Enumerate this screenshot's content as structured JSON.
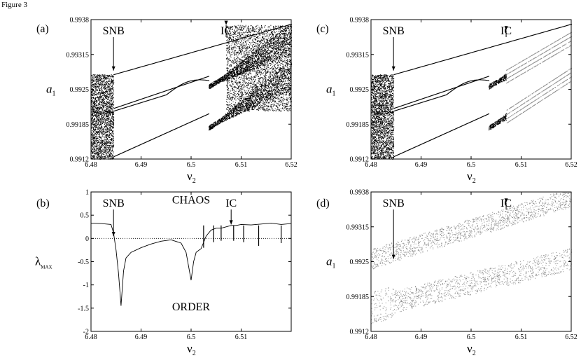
{
  "figure": {
    "title": "Figure 3"
  },
  "colors": {
    "dark": "#000000",
    "light": "#8c8c8c"
  },
  "chart_data": [
    {
      "panel": "(a)",
      "type": "scatter",
      "style": "bifurcation",
      "xlabel": "ν2",
      "ylabel": "a1",
      "xlim": [
        6.48,
        6.52
      ],
      "ylim": [
        0.9912,
        0.9938
      ],
      "xticks": [
        6.48,
        6.49,
        6.5,
        6.51,
        6.52
      ],
      "xtick_labels": [
        "6.48",
        "6.49",
        "6.5",
        "6.51",
        "6.52"
      ],
      "yticks": [
        0.9912,
        0.99185,
        0.9925,
        0.99315,
        0.9938
      ],
      "ytick_labels": [
        "0.9912",
        "0.99185",
        "0.9925",
        "0.99315",
        "0.9938"
      ],
      "annotations": [
        {
          "text": "SNB",
          "x": 6.4845,
          "arrow_to_y": 0.99285
        },
        {
          "text": "IC",
          "x": 6.507,
          "arrow_to_y": 0.9937
        }
      ],
      "color": "dark",
      "chaos_until": 6.4845,
      "band_from": 6.5035,
      "intermittency_from": 6.507
    },
    {
      "panel": "(b)",
      "type": "line",
      "xlabel": "ν2",
      "ylabel": "λ_MAX",
      "xlim": [
        6.48,
        6.52
      ],
      "ylim": [
        -2,
        1
      ],
      "xticks": [
        6.48,
        6.49,
        6.5,
        6.51
      ],
      "xtick_labels": [
        "6.48",
        "6.49",
        "6.5",
        "6.51"
      ],
      "yticks": [
        -2,
        -1.5,
        -1,
        -0.5,
        0,
        0.5,
        1
      ],
      "ytick_labels": [
        "-2",
        "-1.5",
        "-1",
        "-0.5",
        "0",
        "0.5",
        "1"
      ],
      "annotations": [
        {
          "text": "SNB",
          "x": 6.4845,
          "arrow_to_y": 0.05
        },
        {
          "text": "IC",
          "x": 6.508,
          "arrow_to_y": 0.3
        },
        {
          "text": "CHAOS",
          "x": 6.5,
          "y": 0.75
        },
        {
          "text": "ORDER",
          "x": 6.5,
          "y": -1.55
        }
      ],
      "x": [
        6.48,
        6.482,
        6.484,
        6.4845,
        6.485,
        6.4855,
        6.486,
        6.4865,
        6.487,
        6.488,
        6.49,
        6.492,
        6.494,
        6.496,
        6.498,
        6.499,
        6.4995,
        6.5,
        6.5005,
        6.501,
        6.502,
        6.503,
        6.504,
        6.505,
        6.506,
        6.507,
        6.508,
        6.509,
        6.51,
        6.512,
        6.514,
        6.516,
        6.518,
        6.52
      ],
      "y": [
        0.33,
        0.32,
        0.3,
        0.12,
        -0.25,
        -0.75,
        -1.45,
        -0.7,
        -0.42,
        -0.3,
        -0.2,
        -0.12,
        -0.06,
        -0.03,
        -0.1,
        -0.3,
        -0.6,
        -0.9,
        -0.5,
        -0.3,
        -0.22,
        0.05,
        0.18,
        0.22,
        0.22,
        0.25,
        0.28,
        0.28,
        0.3,
        0.29,
        0.31,
        0.33,
        0.3,
        0.32
      ],
      "spikes": [
        {
          "x": 6.5025,
          "y": -0.2
        },
        {
          "x": 6.5045,
          "y": -0.08
        },
        {
          "x": 6.506,
          "y": -0.05
        },
        {
          "x": 6.5085,
          "y": -0.05
        },
        {
          "x": 6.5105,
          "y": -0.08
        },
        {
          "x": 6.5135,
          "y": -0.16
        },
        {
          "x": 6.518,
          "y": -0.1
        }
      ]
    },
    {
      "panel": "(c)",
      "type": "scatter",
      "style": "bifurcation",
      "xlabel": "ν2",
      "ylabel": "a1",
      "xlim": [
        6.48,
        6.52
      ],
      "ylim": [
        0.9912,
        0.9938
      ],
      "xticks": [
        6.48,
        6.49,
        6.5,
        6.51,
        6.52
      ],
      "xtick_labels": [
        "6.48",
        "6.49",
        "6.5",
        "6.51",
        "6.52"
      ],
      "yticks": [
        0.9912,
        0.99185,
        0.9925,
        0.99315,
        0.9938
      ],
      "ytick_labels": [
        "0.9912",
        "0.99185",
        "0.9925",
        "0.99315",
        "0.9938"
      ],
      "annotations": [
        {
          "text": "SNB",
          "x": 6.4845,
          "arrow_to_y": 0.99285
        },
        {
          "text": "IC",
          "x": 6.507,
          "arrow_to_y": 0.9936
        }
      ],
      "color": "dark",
      "chaos_until": 6.4845,
      "band_from": 6.5035,
      "grey_from": 6.507
    },
    {
      "panel": "(d)",
      "type": "scatter",
      "style": "bifurcation",
      "xlabel": "ν2",
      "ylabel": "a1",
      "xlim": [
        6.48,
        6.52
      ],
      "ylim": [
        0.9912,
        0.9938
      ],
      "xticks": [
        6.48,
        6.49,
        6.5,
        6.51,
        6.52
      ],
      "xtick_labels": [
        "6.48",
        "6.49",
        "6.5",
        "6.51",
        "6.52"
      ],
      "yticks": [
        0.9912,
        0.99185,
        0.9925,
        0.99315,
        0.9938
      ],
      "ytick_labels": [
        "0.9912",
        "0.99185",
        "0.9925",
        "0.99315",
        "0.9938"
      ],
      "annotations": [
        {
          "text": "SNB",
          "x": 6.4845,
          "arrow_to_y": 0.99255
        },
        {
          "text": "IC",
          "x": 6.507,
          "arrow_to_y": 0.9936
        }
      ],
      "color": "light"
    }
  ]
}
